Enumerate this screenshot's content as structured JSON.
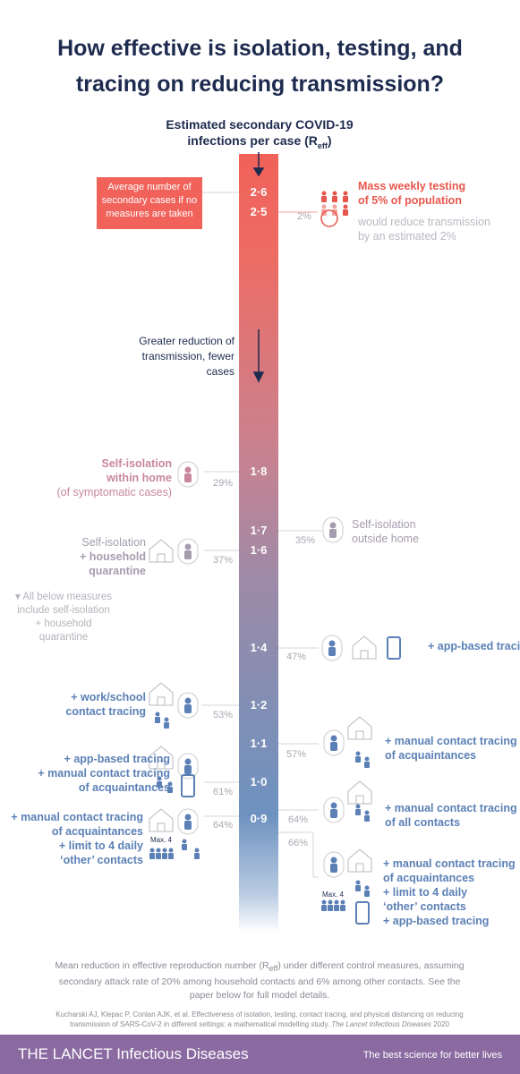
{
  "title": [
    "How effective is isolation, testing, and",
    "tracing on reducing transmission?"
  ],
  "axis_title": {
    "lines": [
      "Estimated secondary COVID-19",
      "infections per case (R"
    ],
    "subscript": "eff",
    "suffix": ")"
  },
  "baseline_label": "Average number of secondary cases if no measures are taken",
  "direction_label": "Greater reduction of transmission, fewer cases",
  "scale_labels": [
    "2·6",
    "2·5",
    "1·8",
    "1·7",
    "1·6",
    "1·4",
    "1·2",
    "1·1",
    "1·0",
    "0·9"
  ],
  "note": "All below measures include self-isolation + household quarantine",
  "measures": [
    {
      "title": [
        "Mass weekly testing",
        "of 5% of population"
      ],
      "subtitle": [
        "would reduce transmission",
        "by an estimated 2%"
      ],
      "reduction": "2%"
    },
    {
      "title": [
        "Self-isolation",
        "within home"
      ],
      "subtitle": [
        "(of symptomatic cases)"
      ],
      "reduction": "29%"
    },
    {
      "title": [
        "Self-isolation",
        "outside home"
      ],
      "reduction": "35%"
    },
    {
      "title": [
        "Self-isolation",
        "+ household",
        "quarantine"
      ],
      "reduction": "37%"
    },
    {
      "title": [
        "+ app-based tracing"
      ],
      "reduction": "47%"
    },
    {
      "title": [
        "+ work/school",
        "contact tracing"
      ],
      "reduction": "53%"
    },
    {
      "title": [
        "+ manual contact tracing",
        "of acquaintances"
      ],
      "reduction": "57%"
    },
    {
      "title": [
        "+ app-based tracing",
        "+ manual contact tracing",
        "of acquaintances"
      ],
      "reduction": "61%"
    },
    {
      "title": [
        "+ manual contact tracing",
        "of all contacts"
      ],
      "reduction": "64%"
    },
    {
      "title": [
        "+ manual contact tracing",
        "of acquaintances",
        "+ limit to 4 daily",
        "‘other’ contacts"
      ],
      "reduction": "64%",
      "limit_label": "Max. 4"
    },
    {
      "title": [
        "+ manual contact tracing",
        "of acquaintances",
        "+ limit to 4 daily",
        "‘other’ contacts",
        "+ app-based tracing"
      ],
      "reduction": "66%",
      "limit_label": "Max. 4"
    }
  ],
  "footnote": {
    "before": "Mean reduction in effective reproduction number (R",
    "subscript": "eff",
    "after": ") under different control measures, assuming secondary attack rate of 20% among household contacts and 6% among other contacts. See the paper below for full model details."
  },
  "citation": {
    "text": "Kucharski AJ, Klepac P, Conlan AJK, et al. Effectiveness of isolation, testing, contact tracing, and physical distancing on reducing transmission of SARS-CoV-2 in different settings: a mathematical modelling study.",
    "journal": "The Lancet Infectious Diseases",
    "year": "2020"
  },
  "footer": {
    "brand": "THE LANCET Infectious Diseases",
    "tagline": "The best science for better lives"
  }
}
